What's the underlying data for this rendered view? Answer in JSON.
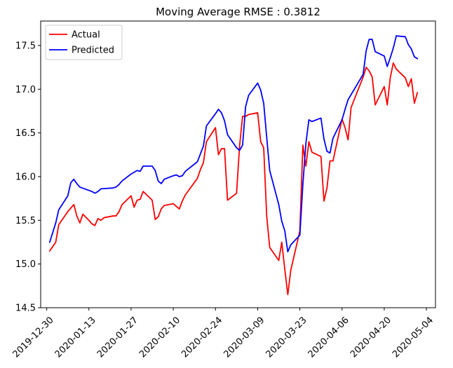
{
  "chart_data": {
    "type": "line",
    "title": "Moving Average RMSE : 0.3812",
    "xlabel": "",
    "ylabel": "",
    "x_range": [
      "2019-12-28",
      "2020-05-07"
    ],
    "ylim": [
      14.5,
      17.78
    ],
    "x_ticks": [
      "2019-12-30",
      "2020-01-13",
      "2020-01-27",
      "2020-02-10",
      "2020-02-24",
      "2020-03-09",
      "2020-03-23",
      "2020-04-06",
      "2020-04-20",
      "2020-05-04"
    ],
    "y_ticks": [
      14.5,
      15.0,
      15.5,
      16.0,
      16.5,
      17.0,
      17.5
    ],
    "y_tick_labels": [
      "14.5",
      "15.0",
      "15.5",
      "16.0",
      "16.5",
      "17.0",
      "17.5"
    ],
    "grid": false,
    "legend": {
      "position": "top-left"
    },
    "series": [
      {
        "name": "Actual",
        "color": "#ff0000",
        "points": [
          [
            "2019-12-31",
            15.15
          ],
          [
            "2020-01-02",
            15.25
          ],
          [
            "2020-01-03",
            15.45
          ],
          [
            "2020-01-06",
            15.6
          ],
          [
            "2020-01-08",
            15.68
          ],
          [
            "2020-01-09",
            15.55
          ],
          [
            "2020-01-10",
            15.47
          ],
          [
            "2020-01-11",
            15.57
          ],
          [
            "2020-01-13",
            15.5
          ],
          [
            "2020-01-14",
            15.46
          ],
          [
            "2020-01-15",
            15.44
          ],
          [
            "2020-01-16",
            15.52
          ],
          [
            "2020-01-17",
            15.5
          ],
          [
            "2020-01-18",
            15.53
          ],
          [
            "2020-01-21",
            15.55
          ],
          [
            "2020-01-22",
            15.55
          ],
          [
            "2020-01-23",
            15.6
          ],
          [
            "2020-01-24",
            15.68
          ],
          [
            "2020-01-27",
            15.78
          ],
          [
            "2020-01-28",
            15.65
          ],
          [
            "2020-01-29",
            15.73
          ],
          [
            "2020-01-30",
            15.74
          ],
          [
            "2020-01-31",
            15.83
          ],
          [
            "2020-02-03",
            15.73
          ],
          [
            "2020-02-04",
            15.51
          ],
          [
            "2020-02-05",
            15.54
          ],
          [
            "2020-02-06",
            15.63
          ],
          [
            "2020-02-07",
            15.67
          ],
          [
            "2020-02-10",
            15.69
          ],
          [
            "2020-02-11",
            15.66
          ],
          [
            "2020-02-12",
            15.63
          ],
          [
            "2020-02-13",
            15.72
          ],
          [
            "2020-02-14",
            15.79
          ],
          [
            "2020-02-18",
            15.98
          ],
          [
            "2020-02-19",
            16.08
          ],
          [
            "2020-02-20",
            16.16
          ],
          [
            "2020-02-21",
            16.4
          ],
          [
            "2020-02-24",
            16.56
          ],
          [
            "2020-02-25",
            16.25
          ],
          [
            "2020-02-26",
            16.32
          ],
          [
            "2020-02-27",
            16.32
          ],
          [
            "2020-02-28",
            15.73
          ],
          [
            "2020-03-02",
            15.81
          ],
          [
            "2020-03-03",
            16.35
          ],
          [
            "2020-03-04",
            16.69
          ],
          [
            "2020-03-05",
            16.69
          ],
          [
            "2020-03-06",
            16.71
          ],
          [
            "2020-03-09",
            16.73
          ],
          [
            "2020-03-10",
            16.4
          ],
          [
            "2020-03-11",
            16.33
          ],
          [
            "2020-03-12",
            15.55
          ],
          [
            "2020-03-13",
            15.19
          ],
          [
            "2020-03-16",
            15.04
          ],
          [
            "2020-03-17",
            15.25
          ],
          [
            "2020-03-18",
            14.94
          ],
          [
            "2020-03-19",
            14.65
          ],
          [
            "2020-03-20",
            14.93
          ],
          [
            "2020-03-23",
            15.38
          ],
          [
            "2020-03-24",
            16.36
          ],
          [
            "2020-03-25",
            16.12
          ],
          [
            "2020-03-26",
            16.4
          ],
          [
            "2020-03-27",
            16.28
          ],
          [
            "2020-03-30",
            16.23
          ],
          [
            "2020-03-31",
            15.72
          ],
          [
            "2020-04-01",
            15.87
          ],
          [
            "2020-04-02",
            16.18
          ],
          [
            "2020-04-03",
            16.18
          ],
          [
            "2020-04-06",
            16.66
          ],
          [
            "2020-04-07",
            16.56
          ],
          [
            "2020-04-08",
            16.42
          ],
          [
            "2020-04-09",
            16.79
          ],
          [
            "2020-04-13",
            17.14
          ],
          [
            "2020-04-14",
            17.25
          ],
          [
            "2020-04-15",
            17.21
          ],
          [
            "2020-04-16",
            17.14
          ],
          [
            "2020-04-17",
            16.82
          ],
          [
            "2020-04-20",
            17.03
          ],
          [
            "2020-04-21",
            16.82
          ],
          [
            "2020-04-22",
            17.13
          ],
          [
            "2020-04-23",
            17.3
          ],
          [
            "2020-04-24",
            17.23
          ],
          [
            "2020-04-27",
            17.13
          ],
          [
            "2020-04-28",
            17.03
          ],
          [
            "2020-04-29",
            17.12
          ],
          [
            "2020-04-30",
            16.84
          ],
          [
            "2020-05-01",
            16.96
          ]
        ]
      },
      {
        "name": "Predicted",
        "color": "#0000ff",
        "points": [
          [
            "2019-12-31",
            15.25
          ],
          [
            "2020-01-02",
            15.47
          ],
          [
            "2020-01-03",
            15.62
          ],
          [
            "2020-01-06",
            15.78
          ],
          [
            "2020-01-07",
            15.93
          ],
          [
            "2020-01-08",
            15.97
          ],
          [
            "2020-01-09",
            15.92
          ],
          [
            "2020-01-10",
            15.88
          ],
          [
            "2020-01-14",
            15.83
          ],
          [
            "2020-01-15",
            15.81
          ],
          [
            "2020-01-16",
            15.83
          ],
          [
            "2020-01-17",
            15.86
          ],
          [
            "2020-01-21",
            15.87
          ],
          [
            "2020-01-22",
            15.88
          ],
          [
            "2020-01-23",
            15.91
          ],
          [
            "2020-01-24",
            15.95
          ],
          [
            "2020-01-27",
            16.03
          ],
          [
            "2020-01-28",
            16.05
          ],
          [
            "2020-01-29",
            16.07
          ],
          [
            "2020-01-30",
            16.06
          ],
          [
            "2020-01-31",
            16.12
          ],
          [
            "2020-02-03",
            16.12
          ],
          [
            "2020-02-04",
            16.07
          ],
          [
            "2020-02-05",
            15.95
          ],
          [
            "2020-02-06",
            15.92
          ],
          [
            "2020-02-07",
            15.97
          ],
          [
            "2020-02-10",
            16.01
          ],
          [
            "2020-02-11",
            16.02
          ],
          [
            "2020-02-12",
            16.0
          ],
          [
            "2020-02-13",
            16.01
          ],
          [
            "2020-02-14",
            16.06
          ],
          [
            "2020-02-18",
            16.17
          ],
          [
            "2020-02-20",
            16.35
          ],
          [
            "2020-02-21",
            16.58
          ],
          [
            "2020-02-24",
            16.72
          ],
          [
            "2020-02-25",
            16.77
          ],
          [
            "2020-02-26",
            16.73
          ],
          [
            "2020-02-27",
            16.64
          ],
          [
            "2020-02-28",
            16.48
          ],
          [
            "2020-03-02",
            16.33
          ],
          [
            "2020-03-03",
            16.3
          ],
          [
            "2020-03-04",
            16.36
          ],
          [
            "2020-03-05",
            16.8
          ],
          [
            "2020-03-06",
            16.93
          ],
          [
            "2020-03-09",
            17.07
          ],
          [
            "2020-03-10",
            16.99
          ],
          [
            "2020-03-11",
            16.84
          ],
          [
            "2020-03-12",
            16.45
          ],
          [
            "2020-03-13",
            16.07
          ],
          [
            "2020-03-16",
            15.68
          ],
          [
            "2020-03-17",
            15.49
          ],
          [
            "2020-03-18",
            15.38
          ],
          [
            "2020-03-19",
            15.14
          ],
          [
            "2020-03-20",
            15.22
          ],
          [
            "2020-03-23",
            15.33
          ],
          [
            "2020-03-24",
            15.91
          ],
          [
            "2020-03-25",
            16.38
          ],
          [
            "2020-03-26",
            16.65
          ],
          [
            "2020-03-27",
            16.63
          ],
          [
            "2020-03-30",
            16.67
          ],
          [
            "2020-03-31",
            16.43
          ],
          [
            "2020-04-01",
            16.29
          ],
          [
            "2020-04-02",
            16.27
          ],
          [
            "2020-04-03",
            16.44
          ],
          [
            "2020-04-06",
            16.65
          ],
          [
            "2020-04-07",
            16.77
          ],
          [
            "2020-04-08",
            16.88
          ],
          [
            "2020-04-13",
            17.17
          ],
          [
            "2020-04-14",
            17.44
          ],
          [
            "2020-04-15",
            17.57
          ],
          [
            "2020-04-16",
            17.57
          ],
          [
            "2020-04-17",
            17.43
          ],
          [
            "2020-04-20",
            17.38
          ],
          [
            "2020-04-21",
            17.26
          ],
          [
            "2020-04-22",
            17.36
          ],
          [
            "2020-04-23",
            17.47
          ],
          [
            "2020-04-24",
            17.61
          ],
          [
            "2020-04-27",
            17.6
          ],
          [
            "2020-04-28",
            17.51
          ],
          [
            "2020-04-29",
            17.46
          ],
          [
            "2020-04-30",
            17.37
          ],
          [
            "2020-05-01",
            17.35
          ]
        ]
      }
    ]
  }
}
